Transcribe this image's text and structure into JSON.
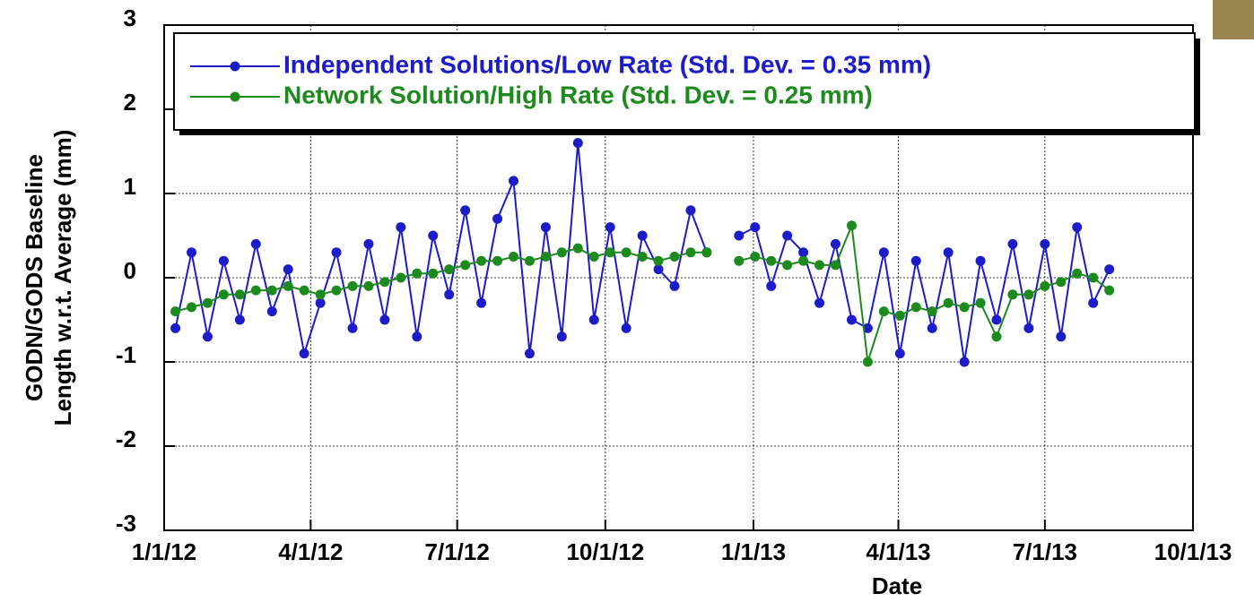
{
  "chart_data": {
    "type": "line",
    "xlabel": "Date",
    "ylabel": [
      "GODN/GODS Baseline",
      "Length w.r.t. Average (mm)"
    ],
    "xlim": [
      "1/1/12",
      "10/1/13"
    ],
    "xticks": [
      "1/1/12",
      "4/1/12",
      "7/1/12",
      "10/1/12",
      "1/1/13",
      "4/1/13",
      "7/1/13",
      "10/1/13"
    ],
    "ylim": [
      -3,
      3
    ],
    "yticks": [
      3,
      2,
      1,
      0,
      -1,
      -2,
      -3
    ],
    "grid": true,
    "legend": "top",
    "x": [
      "1/8/12",
      "1/18/12",
      "1/28/12",
      "2/7/12",
      "2/17/12",
      "2/27/12",
      "3/8/12",
      "3/18/12",
      "3/28/12",
      "4/7/12",
      "4/17/12",
      "4/27/12",
      "5/7/12",
      "5/17/12",
      "5/27/12",
      "6/6/12",
      "6/16/12",
      "6/26/12",
      "7/6/12",
      "7/16/12",
      "7/26/12",
      "8/5/12",
      "8/15/12",
      "8/25/12",
      "9/4/12",
      "9/14/12",
      "9/24/12",
      "10/4/12",
      "10/14/12",
      "10/24/12",
      "11/3/12",
      "11/13/12",
      "11/23/12",
      "12/3/12",
      "12/13/12",
      "12/23/12",
      "1/2/13",
      "1/12/13",
      "1/22/13",
      "2/1/13",
      "2/11/13",
      "2/21/13",
      "3/3/13",
      "3/13/13",
      "3/23/13",
      "4/2/13",
      "4/12/13",
      "4/22/13",
      "5/2/13",
      "5/12/13",
      "5/22/13",
      "6/1/13",
      "6/11/13",
      "6/21/13",
      "7/1/13",
      "7/11/13",
      "7/21/13",
      "7/31/13",
      "8/10/13"
    ],
    "series": [
      {
        "name": "Independent Solutions/Low Rate (Std. Dev. = 0.35 mm)",
        "color": "#1c1cc8",
        "values": [
          -0.6,
          0.3,
          -0.7,
          0.2,
          -0.5,
          0.4,
          -0.4,
          0.1,
          -0.9,
          -0.3,
          0.3,
          -0.6,
          0.4,
          -0.5,
          0.6,
          -0.7,
          0.5,
          -0.2,
          0.8,
          -0.3,
          0.7,
          1.15,
          -0.9,
          0.6,
          -0.7,
          1.6,
          -0.5,
          0.6,
          -0.6,
          0.5,
          0.1,
          -0.1,
          0.8,
          0.3,
          null,
          0.5,
          0.6,
          -0.1,
          0.5,
          0.3,
          -0.3,
          0.4,
          -0.5,
          -0.6,
          0.3,
          -0.9,
          0.2,
          -0.6,
          0.3,
          -1.0,
          0.2,
          -0.5,
          0.4,
          -0.6,
          0.4,
          -0.7,
          0.6,
          -0.3,
          0.1
        ]
      },
      {
        "name": "Network Solution/High Rate (Std. Dev. = 0.25 mm)",
        "color": "#1c8a1c",
        "values": [
          -0.4,
          -0.35,
          -0.3,
          -0.2,
          -0.2,
          -0.15,
          -0.15,
          -0.1,
          -0.15,
          -0.2,
          -0.15,
          -0.1,
          -0.1,
          -0.05,
          0.0,
          0.05,
          0.05,
          0.1,
          0.15,
          0.2,
          0.2,
          0.25,
          0.2,
          0.25,
          0.3,
          0.35,
          0.25,
          0.3,
          0.3,
          0.25,
          0.2,
          0.25,
          0.3,
          0.3,
          null,
          0.2,
          0.25,
          0.2,
          0.15,
          0.2,
          0.15,
          0.15,
          0.62,
          -1.0,
          -0.4,
          -0.45,
          -0.35,
          -0.4,
          -0.3,
          -0.35,
          -0.3,
          -0.7,
          -0.2,
          -0.2,
          -0.1,
          -0.05,
          0.05,
          0.0,
          -0.15
        ]
      }
    ]
  }
}
